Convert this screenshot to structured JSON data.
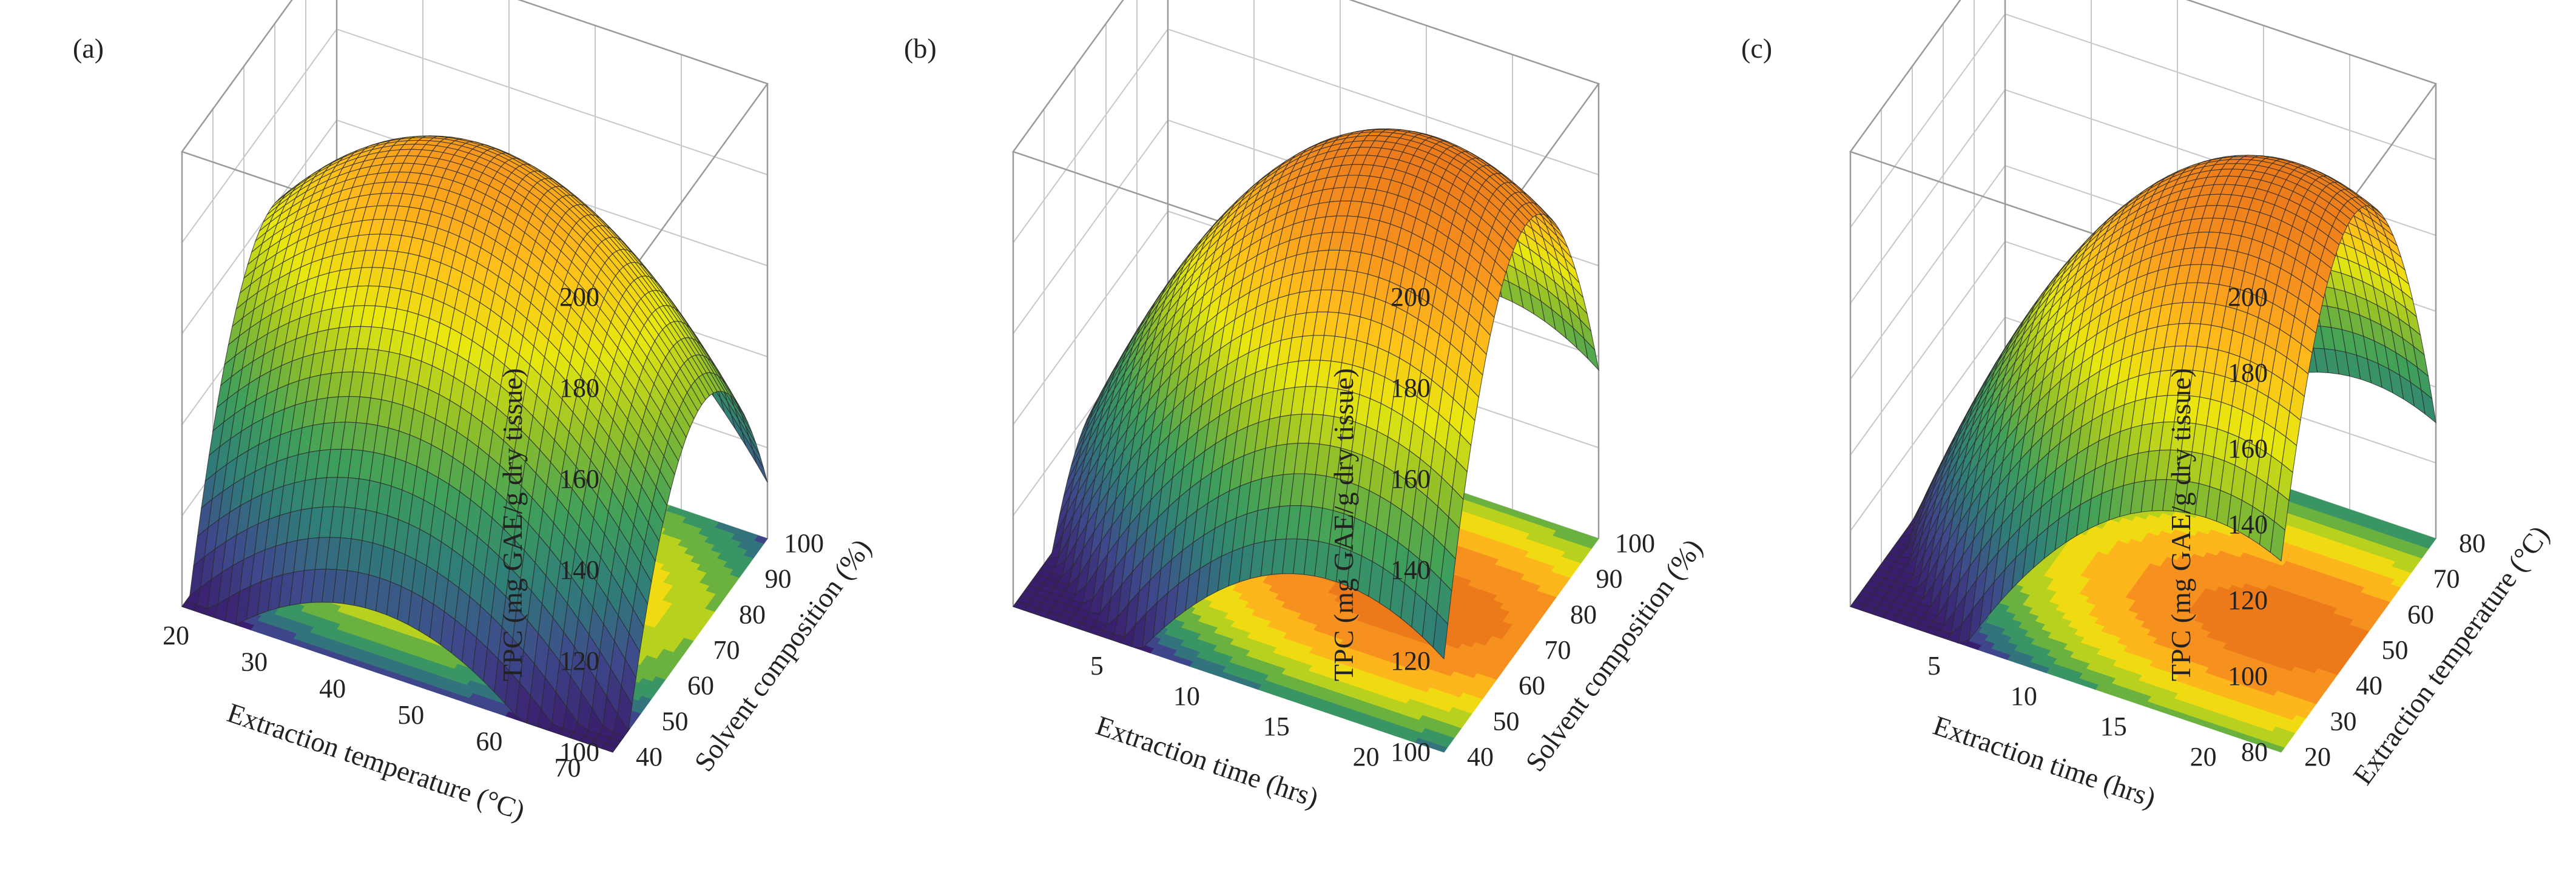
{
  "figure": {
    "panels_count": 3
  },
  "chart_data": [
    {
      "type": "surface3d",
      "panel": "(a)",
      "zlabel": "TPC (mg GAE/g dry tissue)",
      "zticks": [
        100,
        120,
        140,
        160,
        180,
        200
      ],
      "zlim": [
        100,
        200
      ],
      "xlabel": "Extraction temperature (°C)",
      "xticks": [
        70,
        60,
        50,
        40,
        30,
        20
      ],
      "xlim": [
        75,
        20
      ],
      "ylabel": "Solvent composition (%)",
      "yticks": [
        40,
        50,
        60,
        70,
        80,
        90,
        100
      ],
      "ylim": [
        40,
        100
      ],
      "surface_peak": {
        "x": 45,
        "y": 75,
        "z": 186
      },
      "surface_min_z": 100,
      "contour_on_floor": true
    },
    {
      "type": "surface3d",
      "panel": "(b)",
      "zlabel": "TPC (mg GAE/g dry tissue)",
      "zticks": [
        100,
        120,
        140,
        160,
        180,
        200
      ],
      "zlim": [
        100,
        200
      ],
      "xlabel": "Extraction time (hrs)",
      "xticks": [
        20,
        15,
        10,
        5
      ],
      "xlim": [
        24,
        0
      ],
      "ylabel": "Solvent composition (%)",
      "yticks": [
        40,
        50,
        60,
        70,
        80,
        90,
        100
      ],
      "ylim": [
        40,
        100
      ],
      "surface_peak": {
        "x": 18,
        "y": 72,
        "z": 200
      },
      "surface_min_z": 100,
      "contour_on_floor": true
    },
    {
      "type": "surface3d",
      "panel": "(c)",
      "zlabel": "TPC (mg GAE/g dry tissue)",
      "zticks": [
        80,
        100,
        120,
        140,
        160,
        180,
        200
      ],
      "zlim": [
        80,
        200
      ],
      "xlabel": "Extraction time (hrs)",
      "xticks": [
        20,
        15,
        10,
        5
      ],
      "xlim": [
        24,
        0
      ],
      "ylabel": "Extraction temperature (°C)",
      "yticks": [
        20,
        30,
        40,
        50,
        60,
        70,
        80
      ],
      "ylim": [
        20,
        80
      ],
      "surface_peak": {
        "x": 20,
        "y": 48,
        "z": 200
      },
      "surface_min_z": 80,
      "contour_on_floor": true
    }
  ],
  "colors": {
    "grid": "#c8c8c8",
    "box": "#9a9a9a",
    "mesh": "#2a2a2a",
    "colormap": [
      "#3a1e6e",
      "#3e4a8c",
      "#2f7f78",
      "#3fa05a",
      "#8fbf2a",
      "#e8e80e",
      "#ffc01a",
      "#f7931e",
      "#ec7a1a"
    ]
  }
}
